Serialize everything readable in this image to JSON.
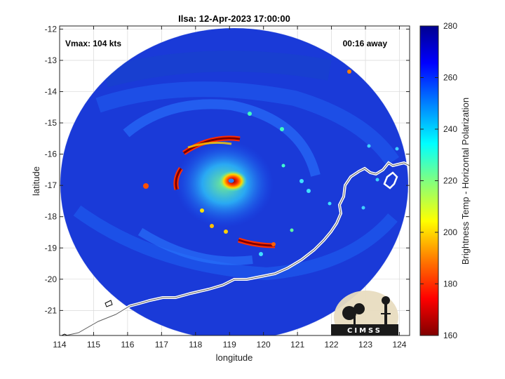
{
  "chart_data": {
    "type": "heatmap",
    "title": "Ilsa: 12-Apr-2023 17:00:00",
    "xlabel": "longitude",
    "ylabel": "latitude",
    "xlim": [
      114,
      124.3
    ],
    "ylim": [
      -21.8,
      -11.9
    ],
    "xticks": [
      114,
      115,
      116,
      117,
      118,
      119,
      120,
      121,
      122,
      123,
      124
    ],
    "yticks": [
      -12,
      -13,
      -14,
      -15,
      -16,
      -17,
      -18,
      -19,
      -20,
      -21
    ],
    "grid": true,
    "storm_center": [
      119.05,
      -16.85
    ],
    "annotations": {
      "vmax": "Vmax: 104 kts",
      "time_away": "00:16 away"
    },
    "colorbar": {
      "label": "Brightness Temp - Horizontal Polarization",
      "min": 160,
      "max": 280,
      "ticks": [
        160,
        180,
        200,
        220,
        240,
        260,
        280
      ],
      "colormap": "jet"
    },
    "logo_text": "CIMSS"
  },
  "colors": {
    "background_blue": "#1a3ad8",
    "outside_swath": "#ffffff",
    "coastline": "#ffffff"
  }
}
